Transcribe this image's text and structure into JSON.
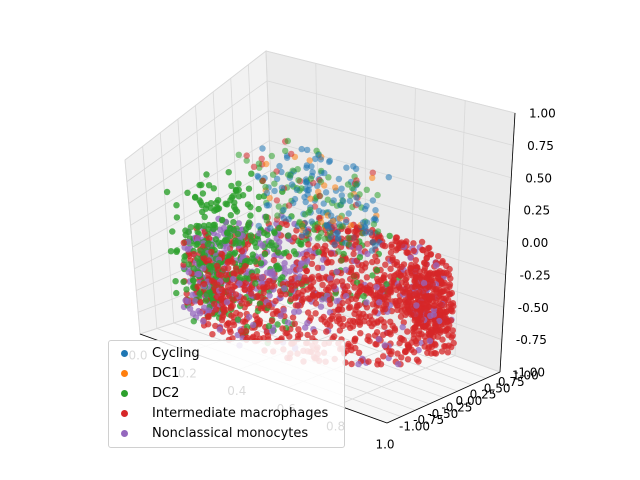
{
  "chart_data": {
    "type": "scatter",
    "projection": "3d",
    "title": "",
    "xlabel": "",
    "ylabel": "",
    "zlabel": "",
    "xlim": [
      0.0,
      1.0
    ],
    "ylim": [
      -1.0,
      1.0
    ],
    "zlim": [
      -1.0,
      1.0
    ],
    "x_ticks": [
      "0.0",
      "0.2",
      "0.4",
      "0.6",
      "0.8",
      "1.0"
    ],
    "y_ticks": [
      "-1.00",
      "-0.75",
      "-0.50",
      "-0.25",
      "0.00",
      "0.25",
      "0.50",
      "0.75",
      "1.00"
    ],
    "z_ticks": [
      "-1.00",
      "-0.75",
      "-0.50",
      "-0.25",
      "0.00",
      "0.25",
      "0.50",
      "0.75",
      "1.00"
    ],
    "grid": true,
    "legend_position": "lower-left",
    "series": [
      {
        "name": "Cycling",
        "color": "#1f77b4"
      },
      {
        "name": "DC1",
        "color": "#ff7f0e"
      },
      {
        "name": "DC2",
        "color": "#2ca02c"
      },
      {
        "name": "Intermediate macrophages",
        "color": "#d62728"
      },
      {
        "name": "Nonclassical monocytes",
        "color": "#9467bd"
      }
    ]
  }
}
